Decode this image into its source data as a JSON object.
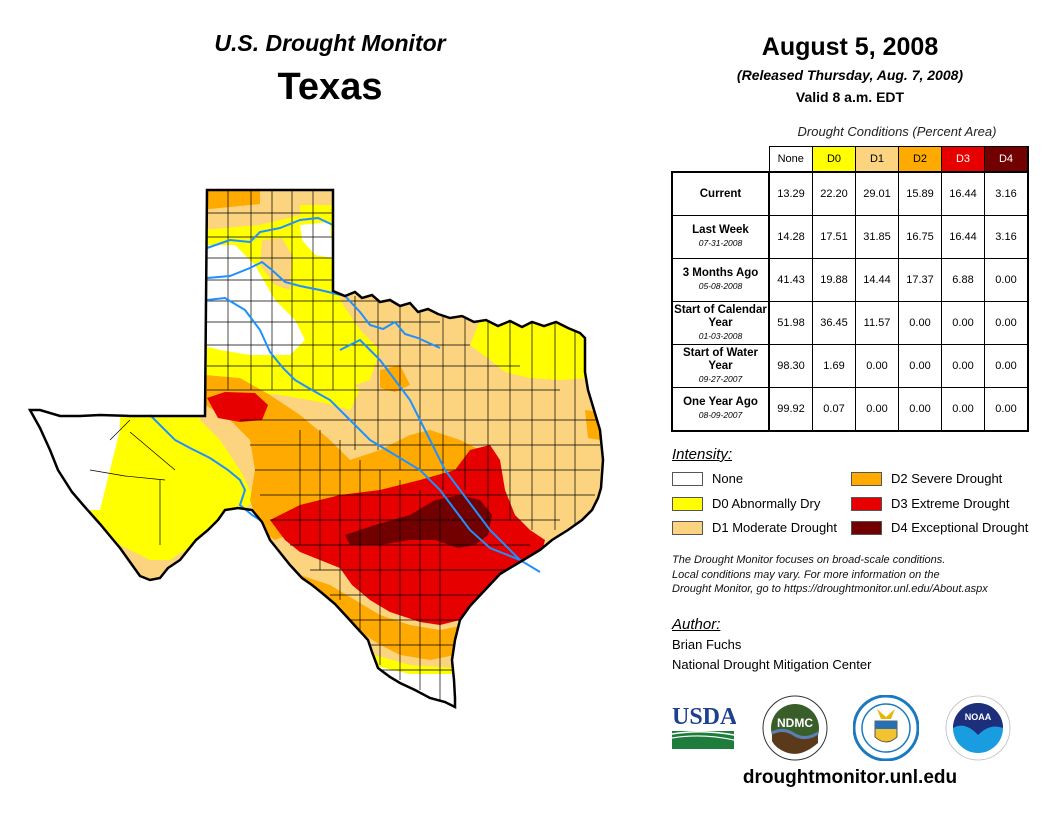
{
  "header": {
    "subtitle": "U.S. Drought Monitor",
    "title": "Texas"
  },
  "date": {
    "main": "August 5, 2008",
    "released": "(Released Thursday, Aug. 7, 2008)",
    "valid": "Valid 8 a.m. EDT"
  },
  "table": {
    "caption": "Drought Conditions (Percent Area)",
    "columns": [
      {
        "label": "None",
        "color": "#ffffff",
        "text_color": "#000000"
      },
      {
        "label": "D0",
        "color": "#ffff00",
        "text_color": "#000000"
      },
      {
        "label": "D1",
        "color": "#fcd37f",
        "text_color": "#000000"
      },
      {
        "label": "D2",
        "color": "#ffaa00",
        "text_color": "#000000"
      },
      {
        "label": "D3",
        "color": "#e60000",
        "text_color": "#ffffff"
      },
      {
        "label": "D4",
        "color": "#730000",
        "text_color": "#ffffff"
      }
    ],
    "rows": [
      {
        "label": "Current",
        "date": "",
        "values": [
          "13.29",
          "22.20",
          "29.01",
          "15.89",
          "16.44",
          "3.16"
        ]
      },
      {
        "label": "Last Week",
        "date": "07-31-2008",
        "values": [
          "14.28",
          "17.51",
          "31.85",
          "16.75",
          "16.44",
          "3.16"
        ]
      },
      {
        "label": "3 Months Ago",
        "date": "05-08-2008",
        "values": [
          "41.43",
          "19.88",
          "14.44",
          "17.37",
          "6.88",
          "0.00"
        ]
      },
      {
        "label": "Start of Calendar Year",
        "date": "01-03-2008",
        "values": [
          "51.98",
          "36.45",
          "11.57",
          "0.00",
          "0.00",
          "0.00"
        ]
      },
      {
        "label": "Start of Water Year",
        "date": "09-27-2007",
        "values": [
          "98.30",
          "1.69",
          "0.00",
          "0.00",
          "0.00",
          "0.00"
        ]
      },
      {
        "label": "One Year Ago",
        "date": "08-09-2007",
        "values": [
          "99.92",
          "0.07",
          "0.00",
          "0.00",
          "0.00",
          "0.00"
        ]
      }
    ]
  },
  "legend": {
    "title": "Intensity:",
    "items": [
      {
        "label": "None",
        "color": "#ffffff"
      },
      {
        "label": "D0 Abnormally Dry",
        "color": "#ffff00"
      },
      {
        "label": "D1 Moderate Drought",
        "color": "#fcd37f"
      },
      {
        "label": "D2 Severe Drought",
        "color": "#ffaa00"
      },
      {
        "label": "D3 Extreme Drought",
        "color": "#e60000"
      },
      {
        "label": "D4 Exceptional Drought",
        "color": "#730000"
      }
    ]
  },
  "note": {
    "lines": [
      "The Drought Monitor focuses on broad-scale conditions.",
      "Local conditions may vary. For more information on the",
      "Drought Monitor, go to https://droughtmonitor.unl.edu/About.aspx"
    ]
  },
  "author": {
    "title": "Author:",
    "name": "Brian Fuchs",
    "org": "National Drought Mitigation Center"
  },
  "logos": [
    {
      "name": "usda-logo",
      "text": "USDA"
    },
    {
      "name": "ndmc-logo",
      "text": "NDMC"
    },
    {
      "name": "doc-seal-logo",
      "text": ""
    },
    {
      "name": "noaa-logo",
      "text": "NOAA"
    }
  ],
  "footer": {
    "url": "droughtmonitor.unl.edu"
  },
  "map": {
    "region": "Texas",
    "colors": {
      "none": "#ffffff",
      "d0": "#ffff00",
      "d1": "#fcd37f",
      "d2": "#ffaa00",
      "d3": "#e60000",
      "d4": "#730000",
      "river": "#1e90ff",
      "border": "#000000"
    }
  }
}
